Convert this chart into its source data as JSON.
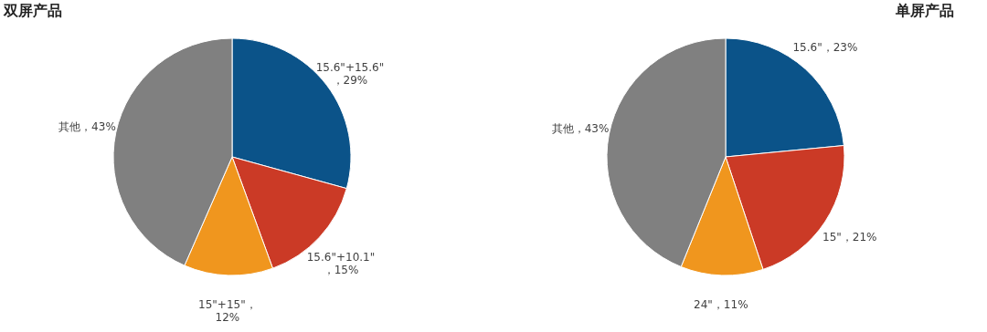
{
  "chart_data": [
    {
      "type": "pie",
      "title": "双屏产品",
      "categories": [
        "15.6\"+15.6\"",
        "15.6\"+10.1\"",
        "15\"+15\"",
        "其他"
      ],
      "values": [
        29,
        15,
        12,
        43
      ],
      "colors": [
        "#0b5389",
        "#cb3a26",
        "#f0961e",
        "#808080"
      ],
      "value_labels": [
        "\n，29%",
        "\n，15%",
        "，\n12%",
        "，43%"
      ]
    },
    {
      "type": "pie",
      "title": "单屏产品",
      "categories": [
        "15.6\"",
        "15\"",
        "24\"",
        "其他"
      ],
      "values": [
        23,
        21,
        11,
        43
      ],
      "colors": [
        "#0b5389",
        "#cb3a26",
        "#f0961e",
        "#808080"
      ],
      "value_labels": [
        "，23%",
        "，21%",
        "，11%",
        "，43%"
      ]
    }
  ]
}
